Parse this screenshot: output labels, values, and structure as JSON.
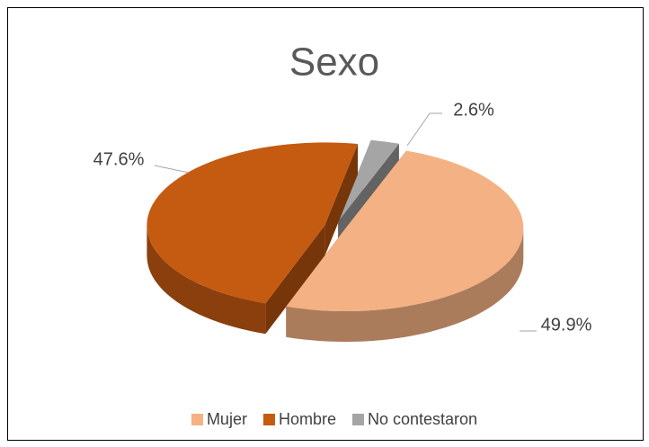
{
  "chart_data": {
    "type": "pie",
    "title": "Sexo",
    "categories": [
      "Mujer",
      "Hombre",
      "No contestaron"
    ],
    "values": [
      49.9,
      47.6,
      2.6
    ],
    "value_labels": [
      "49.9%",
      "47.6%",
      "2.6%"
    ],
    "colors": [
      "#f4b183",
      "#c55a11",
      "#a5a5a5"
    ],
    "legend": "bottom"
  }
}
